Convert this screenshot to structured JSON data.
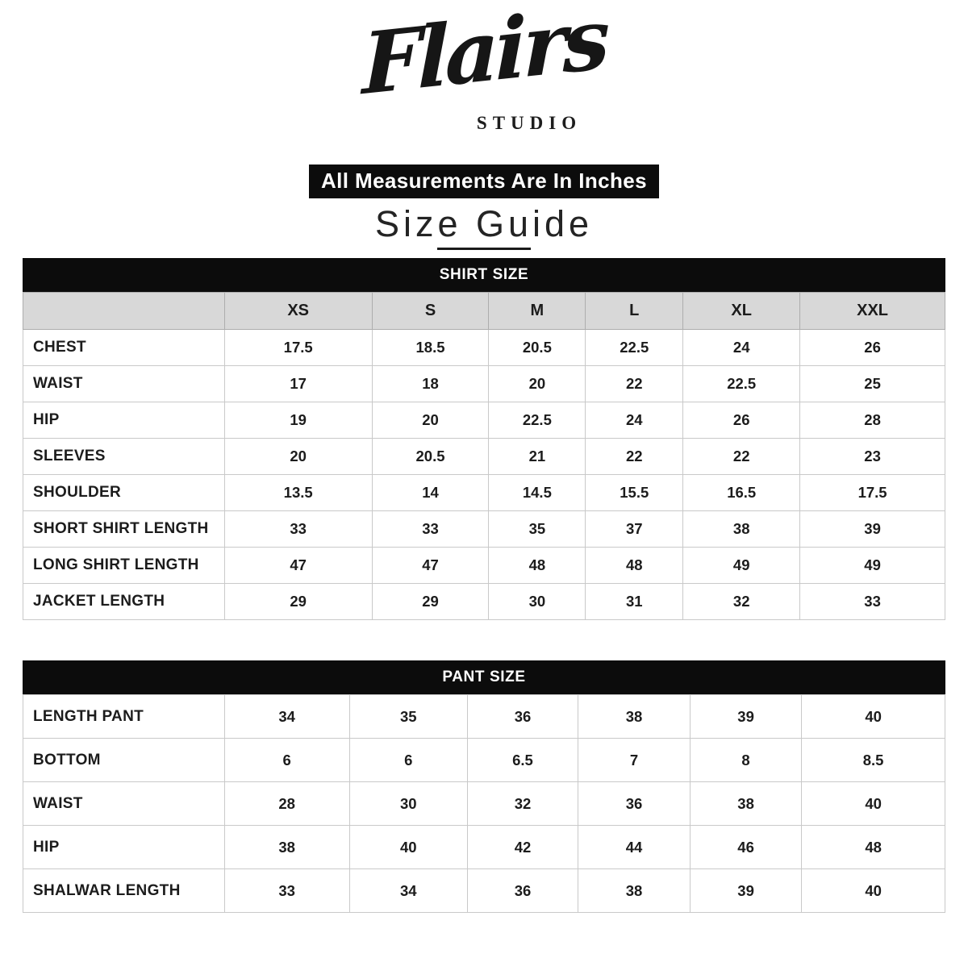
{
  "colors": {
    "band_background": "#0c0c0c",
    "band_text": "#ffffff",
    "header_row_background": "#d8d8d8",
    "grid_line": "#c9c9c9",
    "text": "#1c1c1c"
  },
  "brand": {
    "name": "Flairs",
    "subtitle": "STUDIO"
  },
  "banner": {
    "text": "All Measurements Are In Inches"
  },
  "title": {
    "text": "Size Guide"
  },
  "shirt_table": {
    "title": "SHIRT SIZE",
    "size_columns": [
      "XS",
      "S",
      "M",
      "L",
      "XL",
      "XXL"
    ],
    "rows": [
      {
        "label": "CHEST",
        "values": [
          "17.5",
          "18.5",
          "20.5",
          "22.5",
          "24",
          "26"
        ]
      },
      {
        "label": "WAIST",
        "values": [
          "17",
          "18",
          "20",
          "22",
          "22.5",
          "25"
        ]
      },
      {
        "label": "HIP",
        "values": [
          "19",
          "20",
          "22.5",
          "24",
          "26",
          "28"
        ]
      },
      {
        "label": "SLEEVES",
        "values": [
          "20",
          "20.5",
          "21",
          "22",
          "22",
          "23"
        ]
      },
      {
        "label": "SHOULDER",
        "values": [
          "13.5",
          "14",
          "14.5",
          "15.5",
          "16.5",
          "17.5"
        ]
      },
      {
        "label": "SHORT SHIRT LENGTH",
        "values": [
          "33",
          "33",
          "35",
          "37",
          "38",
          "39"
        ]
      },
      {
        "label": "LONG SHIRT LENGTH",
        "values": [
          "47",
          "47",
          "48",
          "48",
          "49",
          "49"
        ]
      },
      {
        "label": "JACKET LENGTH",
        "values": [
          "29",
          "29",
          "30",
          "31",
          "32",
          "33"
        ]
      }
    ]
  },
  "pant_table": {
    "title": "PANT SIZE",
    "rows": [
      {
        "label": "LENGTH PANT",
        "values": [
          "34",
          "35",
          "36",
          "38",
          "39",
          "40"
        ]
      },
      {
        "label": "BOTTOM",
        "values": [
          "6",
          "6",
          "6.5",
          "7",
          "8",
          "8.5"
        ]
      },
      {
        "label": "WAIST",
        "values": [
          "28",
          "30",
          "32",
          "36",
          "38",
          "40"
        ]
      },
      {
        "label": "HIP",
        "values": [
          "38",
          "40",
          "42",
          "44",
          "46",
          "48"
        ]
      },
      {
        "label": "SHALWAR LENGTH",
        "values": [
          "33",
          "34",
          "36",
          "38",
          "39",
          "40"
        ]
      }
    ]
  }
}
